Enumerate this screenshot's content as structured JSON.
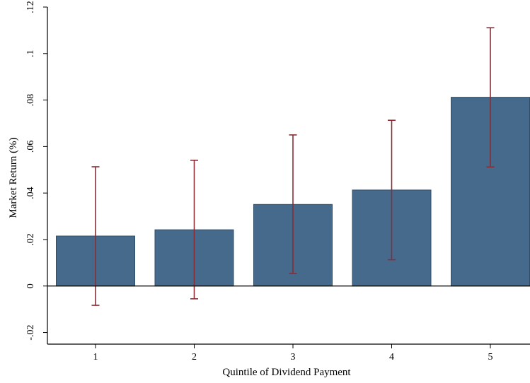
{
  "chart_data": {
    "type": "bar",
    "title": "",
    "xlabel": "Quintile of Dividend Payment",
    "ylabel": "Market Return (%)",
    "categories": [
      "1",
      "2",
      "3",
      "4",
      "5"
    ],
    "values": [
      0.0215,
      0.0242,
      0.0351,
      0.0413,
      0.0812
    ],
    "error_bars": {
      "lower": [
        -0.0083,
        -0.0055,
        0.0054,
        0.0113,
        0.0512
      ],
      "upper": [
        0.0513,
        0.0541,
        0.065,
        0.0713,
        0.1111
      ]
    },
    "ylim": [
      -0.025,
      0.12
    ],
    "yticks": [
      -0.02,
      0,
      0.02,
      0.04,
      0.06,
      0.08,
      0.1,
      0.12
    ],
    "ytick_labels": [
      "-.02",
      "0",
      ".02",
      ".04",
      ".06",
      ".08",
      ".1",
      ".12"
    ],
    "grid": false,
    "colors": {
      "bar_fill": "#466a8c",
      "bar_stroke": "#2f4d69",
      "error_bar": "#8b2c35",
      "axis": "#000000"
    }
  }
}
